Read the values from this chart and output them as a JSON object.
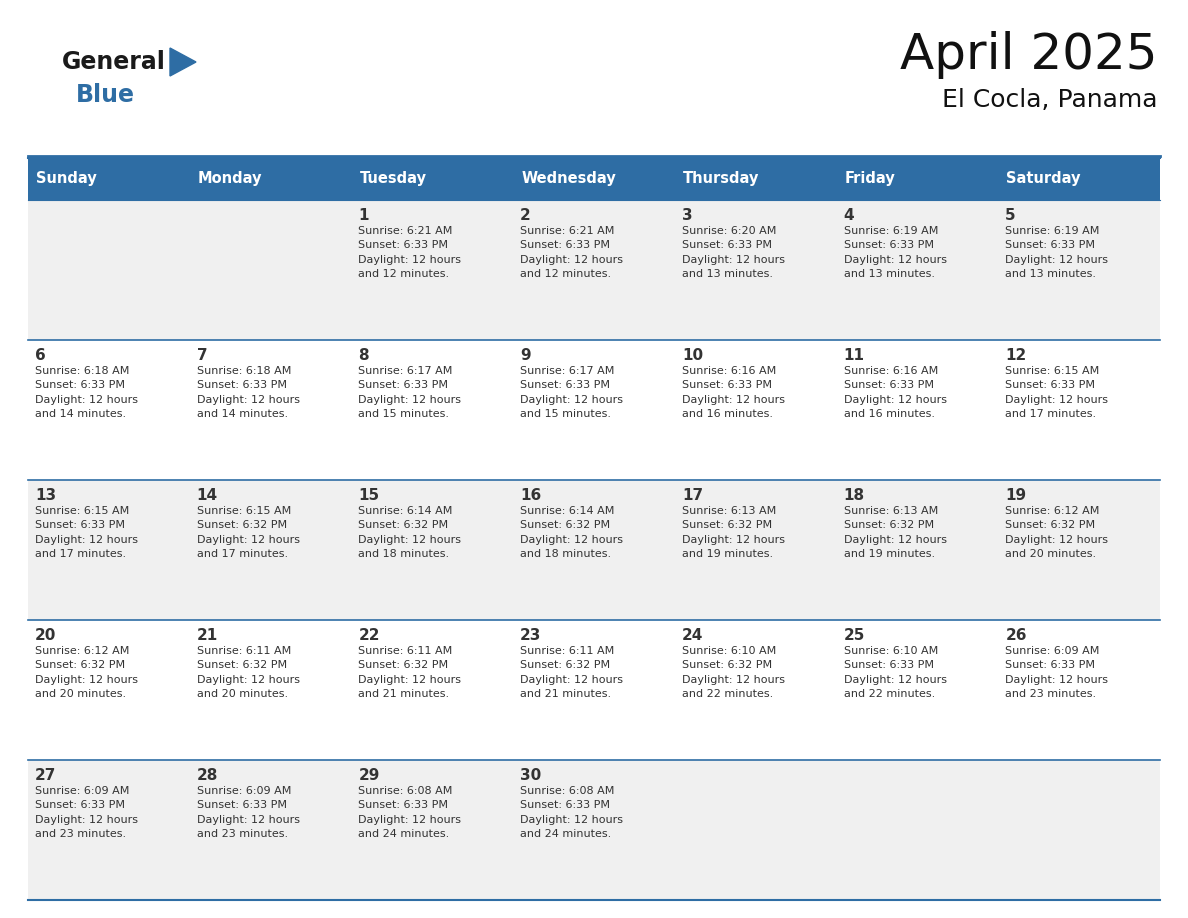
{
  "title": "April 2025",
  "subtitle": "El Cocla, Panama",
  "days_of_week": [
    "Sunday",
    "Monday",
    "Tuesday",
    "Wednesday",
    "Thursday",
    "Friday",
    "Saturday"
  ],
  "header_bg": "#2E6DA4",
  "header_text": "#FFFFFF",
  "row_bg_even": "#F0F0F0",
  "row_bg_odd": "#FFFFFF",
  "border_color": "#2E6DA4",
  "text_color": "#333333",
  "logo_general_color": "#1a1a1a",
  "logo_blue_color": "#2E6DA4",
  "calendar_data": [
    [
      {
        "day": null,
        "info": null
      },
      {
        "day": null,
        "info": null
      },
      {
        "day": 1,
        "info": "Sunrise: 6:21 AM\nSunset: 6:33 PM\nDaylight: 12 hours\nand 12 minutes."
      },
      {
        "day": 2,
        "info": "Sunrise: 6:21 AM\nSunset: 6:33 PM\nDaylight: 12 hours\nand 12 minutes."
      },
      {
        "day": 3,
        "info": "Sunrise: 6:20 AM\nSunset: 6:33 PM\nDaylight: 12 hours\nand 13 minutes."
      },
      {
        "day": 4,
        "info": "Sunrise: 6:19 AM\nSunset: 6:33 PM\nDaylight: 12 hours\nand 13 minutes."
      },
      {
        "day": 5,
        "info": "Sunrise: 6:19 AM\nSunset: 6:33 PM\nDaylight: 12 hours\nand 13 minutes."
      }
    ],
    [
      {
        "day": 6,
        "info": "Sunrise: 6:18 AM\nSunset: 6:33 PM\nDaylight: 12 hours\nand 14 minutes."
      },
      {
        "day": 7,
        "info": "Sunrise: 6:18 AM\nSunset: 6:33 PM\nDaylight: 12 hours\nand 14 minutes."
      },
      {
        "day": 8,
        "info": "Sunrise: 6:17 AM\nSunset: 6:33 PM\nDaylight: 12 hours\nand 15 minutes."
      },
      {
        "day": 9,
        "info": "Sunrise: 6:17 AM\nSunset: 6:33 PM\nDaylight: 12 hours\nand 15 minutes."
      },
      {
        "day": 10,
        "info": "Sunrise: 6:16 AM\nSunset: 6:33 PM\nDaylight: 12 hours\nand 16 minutes."
      },
      {
        "day": 11,
        "info": "Sunrise: 6:16 AM\nSunset: 6:33 PM\nDaylight: 12 hours\nand 16 minutes."
      },
      {
        "day": 12,
        "info": "Sunrise: 6:15 AM\nSunset: 6:33 PM\nDaylight: 12 hours\nand 17 minutes."
      }
    ],
    [
      {
        "day": 13,
        "info": "Sunrise: 6:15 AM\nSunset: 6:33 PM\nDaylight: 12 hours\nand 17 minutes."
      },
      {
        "day": 14,
        "info": "Sunrise: 6:15 AM\nSunset: 6:32 PM\nDaylight: 12 hours\nand 17 minutes."
      },
      {
        "day": 15,
        "info": "Sunrise: 6:14 AM\nSunset: 6:32 PM\nDaylight: 12 hours\nand 18 minutes."
      },
      {
        "day": 16,
        "info": "Sunrise: 6:14 AM\nSunset: 6:32 PM\nDaylight: 12 hours\nand 18 minutes."
      },
      {
        "day": 17,
        "info": "Sunrise: 6:13 AM\nSunset: 6:32 PM\nDaylight: 12 hours\nand 19 minutes."
      },
      {
        "day": 18,
        "info": "Sunrise: 6:13 AM\nSunset: 6:32 PM\nDaylight: 12 hours\nand 19 minutes."
      },
      {
        "day": 19,
        "info": "Sunrise: 6:12 AM\nSunset: 6:32 PM\nDaylight: 12 hours\nand 20 minutes."
      }
    ],
    [
      {
        "day": 20,
        "info": "Sunrise: 6:12 AM\nSunset: 6:32 PM\nDaylight: 12 hours\nand 20 minutes."
      },
      {
        "day": 21,
        "info": "Sunrise: 6:11 AM\nSunset: 6:32 PM\nDaylight: 12 hours\nand 20 minutes."
      },
      {
        "day": 22,
        "info": "Sunrise: 6:11 AM\nSunset: 6:32 PM\nDaylight: 12 hours\nand 21 minutes."
      },
      {
        "day": 23,
        "info": "Sunrise: 6:11 AM\nSunset: 6:32 PM\nDaylight: 12 hours\nand 21 minutes."
      },
      {
        "day": 24,
        "info": "Sunrise: 6:10 AM\nSunset: 6:32 PM\nDaylight: 12 hours\nand 22 minutes."
      },
      {
        "day": 25,
        "info": "Sunrise: 6:10 AM\nSunset: 6:33 PM\nDaylight: 12 hours\nand 22 minutes."
      },
      {
        "day": 26,
        "info": "Sunrise: 6:09 AM\nSunset: 6:33 PM\nDaylight: 12 hours\nand 23 minutes."
      }
    ],
    [
      {
        "day": 27,
        "info": "Sunrise: 6:09 AM\nSunset: 6:33 PM\nDaylight: 12 hours\nand 23 minutes."
      },
      {
        "day": 28,
        "info": "Sunrise: 6:09 AM\nSunset: 6:33 PM\nDaylight: 12 hours\nand 23 minutes."
      },
      {
        "day": 29,
        "info": "Sunrise: 6:08 AM\nSunset: 6:33 PM\nDaylight: 12 hours\nand 24 minutes."
      },
      {
        "day": 30,
        "info": "Sunrise: 6:08 AM\nSunset: 6:33 PM\nDaylight: 12 hours\nand 24 minutes."
      },
      {
        "day": null,
        "info": null
      },
      {
        "day": null,
        "info": null
      },
      {
        "day": null,
        "info": null
      }
    ]
  ],
  "figsize": [
    11.88,
    9.18
  ],
  "dpi": 100
}
